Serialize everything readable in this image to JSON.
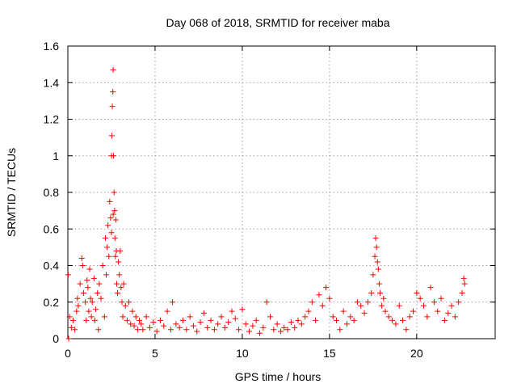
{
  "chart_data": {
    "type": "scatter",
    "title": "Day 068 of 2018, SRMTID for receiver maba",
    "xlabel": "GPS time / hours",
    "ylabel": "SRMTID / TECUs",
    "xlim": [
      0,
      24.5
    ],
    "ylim": [
      0,
      1.6
    ],
    "xticks": [
      0,
      5,
      10,
      15,
      20
    ],
    "xtick_labels": [
      "0",
      "5",
      "10",
      "15",
      "20"
    ],
    "yticks": [
      0,
      0.2,
      0.4,
      0.6,
      0.8,
      1.0,
      1.2,
      1.4,
      1.6
    ],
    "ytick_labels": [
      "0",
      "0.2",
      "0.4",
      "0.6",
      "0.8",
      "1",
      "1.2",
      "1.4",
      "1.6"
    ],
    "grid": true,
    "marker": "+",
    "color": "#ff0000",
    "series": [
      {
        "name": "SRMTID",
        "x": [
          0.02,
          0.05,
          0.1,
          0.2,
          0.3,
          0.4,
          0.5,
          0.55,
          0.6,
          0.7,
          0.8,
          0.85,
          0.9,
          1.0,
          1.05,
          1.1,
          1.15,
          1.2,
          1.25,
          1.3,
          1.35,
          1.4,
          1.5,
          1.55,
          1.6,
          1.7,
          1.75,
          1.8,
          1.9,
          2.0,
          2.1,
          2.15,
          2.2,
          2.25,
          2.3,
          2.35,
          2.4,
          2.45,
          2.5,
          2.5,
          2.52,
          2.55,
          2.58,
          2.6,
          2.6,
          2.62,
          2.65,
          2.68,
          2.7,
          2.72,
          2.75,
          2.78,
          2.8,
          2.85,
          2.9,
          2.95,
          3.0,
          3.05,
          3.1,
          3.15,
          3.2,
          3.3,
          3.4,
          3.5,
          3.6,
          3.7,
          3.8,
          3.9,
          4.0,
          4.1,
          4.2,
          4.3,
          4.5,
          4.7,
          4.9,
          5.1,
          5.3,
          5.5,
          5.7,
          5.9,
          6.0,
          6.2,
          6.4,
          6.6,
          6.8,
          7.0,
          7.2,
          7.4,
          7.6,
          7.8,
          8.0,
          8.2,
          8.4,
          8.6,
          8.8,
          9.0,
          9.2,
          9.4,
          9.6,
          9.8,
          10.0,
          10.2,
          10.4,
          10.6,
          10.8,
          11.0,
          11.2,
          11.4,
          11.6,
          11.8,
          12.0,
          12.2,
          12.4,
          12.6,
          12.8,
          13.0,
          13.2,
          13.4,
          13.6,
          13.8,
          14.0,
          14.2,
          14.4,
          14.6,
          14.8,
          15.0,
          15.2,
          15.4,
          15.6,
          15.8,
          16.0,
          16.2,
          16.4,
          16.6,
          16.8,
          17.0,
          17.2,
          17.4,
          17.5,
          17.6,
          17.65,
          17.7,
          17.75,
          17.8,
          17.85,
          17.9,
          18.0,
          18.1,
          18.2,
          18.4,
          18.6,
          18.8,
          19.0,
          19.2,
          19.4,
          19.6,
          19.8,
          20.0,
          20.2,
          20.4,
          20.6,
          20.8,
          21.0,
          21.2,
          21.4,
          21.6,
          21.8,
          22.0,
          22.2,
          22.4,
          22.6,
          22.7,
          22.75
        ],
        "y": [
          0.35,
          0.0,
          0.12,
          0.06,
          0.1,
          0.05,
          0.15,
          0.22,
          0.18,
          0.3,
          0.44,
          0.4,
          0.25,
          0.2,
          0.1,
          0.32,
          0.28,
          0.15,
          0.38,
          0.22,
          0.12,
          0.2,
          0.33,
          0.1,
          0.16,
          0.25,
          0.05,
          0.3,
          0.22,
          0.4,
          0.12,
          0.55,
          0.35,
          0.5,
          0.62,
          0.45,
          0.75,
          0.66,
          1.0,
          0.58,
          1.11,
          1.27,
          1.35,
          1.47,
          0.68,
          1.0,
          0.8,
          0.7,
          0.55,
          0.45,
          0.65,
          0.48,
          0.3,
          0.25,
          0.42,
          0.35,
          0.48,
          0.28,
          0.2,
          0.12,
          0.3,
          0.18,
          0.1,
          0.2,
          0.08,
          0.15,
          0.07,
          0.12,
          0.05,
          0.1,
          0.08,
          0.05,
          0.12,
          0.06,
          0.09,
          0.04,
          0.1,
          0.07,
          0.15,
          0.05,
          0.2,
          0.08,
          0.06,
          0.1,
          0.05,
          0.12,
          0.07,
          0.04,
          0.09,
          0.14,
          0.06,
          0.1,
          0.05,
          0.08,
          0.12,
          0.06,
          0.09,
          0.15,
          0.11,
          0.05,
          0.16,
          0.08,
          0.04,
          0.07,
          0.1,
          0.03,
          0.06,
          0.2,
          0.12,
          0.05,
          0.08,
          0.04,
          0.06,
          0.05,
          0.09,
          0.06,
          0.1,
          0.08,
          0.12,
          0.15,
          0.2,
          0.1,
          0.24,
          0.18,
          0.28,
          0.22,
          0.12,
          0.1,
          0.05,
          0.15,
          0.08,
          0.12,
          0.1,
          0.2,
          0.18,
          0.14,
          0.2,
          0.25,
          0.35,
          0.45,
          0.55,
          0.5,
          0.42,
          0.38,
          0.3,
          0.25,
          0.18,
          0.22,
          0.15,
          0.12,
          0.1,
          0.08,
          0.18,
          0.1,
          0.05,
          0.12,
          0.15,
          0.25,
          0.22,
          0.18,
          0.12,
          0.28,
          0.2,
          0.15,
          0.22,
          0.1,
          0.14,
          0.18,
          0.12,
          0.2,
          0.25,
          0.33,
          0.3
        ]
      }
    ]
  }
}
